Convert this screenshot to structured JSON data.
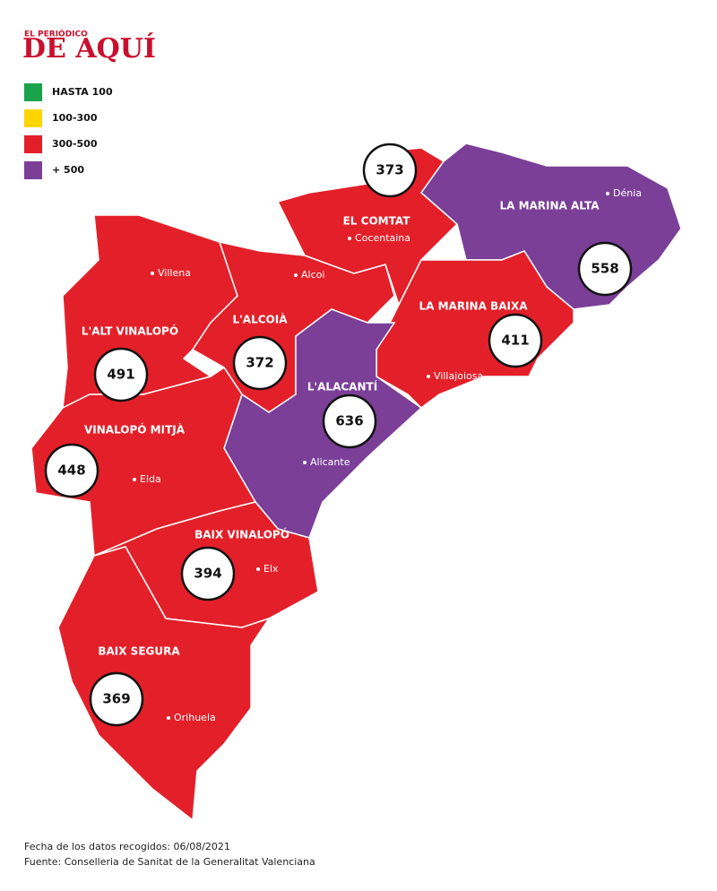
{
  "logo": {
    "small": "EL PERIÓDICO",
    "main": "DE AQUÍ"
  },
  "legend": [
    {
      "label": "HASTA 100",
      "color": "#1aa34a"
    },
    {
      "label": "100-300",
      "color": "#ffd500"
    },
    {
      "label": "300-500",
      "color": "#e3202a"
    },
    {
      "label": "+ 500",
      "color": "#7b3f98"
    }
  ],
  "regions": [
    {
      "name": "L'ALT VINALOPÓ",
      "value": 491,
      "city": "Villena",
      "color": "#e3202a"
    },
    {
      "name": "L'ALCOIÀ",
      "value": 372,
      "city": "Alcoi",
      "color": "#e3202a"
    },
    {
      "name": "EL COMTAT",
      "value": 373,
      "city": "Cocentaina",
      "color": "#e3202a"
    },
    {
      "name": "LA MARINA ALTA",
      "value": 558,
      "city": "Dénia",
      "color": "#7b3f98"
    },
    {
      "name": "LA MARINA BAIXA",
      "value": 411,
      "city": "Villajoiosa",
      "color": "#e3202a"
    },
    {
      "name": "L'ALACANTÍ",
      "value": 636,
      "city": "Alicante",
      "color": "#7b3f98"
    },
    {
      "name": "VINALOPÓ MITJÀ",
      "value": 448,
      "city": "Elda",
      "color": "#e3202a"
    },
    {
      "name": "BAIX VINALOPÓ",
      "value": 394,
      "city": "Elx",
      "color": "#e3202a"
    },
    {
      "name": "BAIX SEGURA",
      "value": 369,
      "city": "Orihuela",
      "color": "#e3202a"
    }
  ],
  "footer": [
    "Fecha de los datos recogidos: 06/08/2021",
    "Fuente: Conselleria de Sanitat de la Generalitat Valenciana"
  ]
}
